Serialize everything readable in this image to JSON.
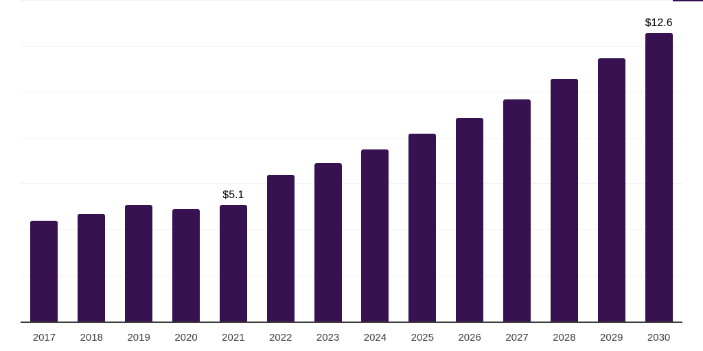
{
  "chart_data": {
    "type": "bar",
    "title": "",
    "xlabel": "",
    "ylabel": "",
    "categories": [
      "2017",
      "2018",
      "2019",
      "2020",
      "2021",
      "2022",
      "2023",
      "2024",
      "2025",
      "2026",
      "2027",
      "2028",
      "2029",
      "2030"
    ],
    "values": [
      4.4,
      4.7,
      5.1,
      4.9,
      5.1,
      6.4,
      6.9,
      7.5,
      8.2,
      8.9,
      9.7,
      10.6,
      11.5,
      12.6
    ],
    "data_labels": [
      {
        "category": "2021",
        "text": "$5.1"
      },
      {
        "category": "2030",
        "text": "$12.6"
      }
    ],
    "ylim": [
      0,
      14
    ],
    "grid_step": 2,
    "grid": true,
    "legend": false,
    "y_tick_labels_shown": false,
    "colors": {
      "bar": "#371150",
      "background": "#ffffff",
      "gridline": "#f1f1f3",
      "axis_line": "#3b3b3b",
      "tick_label": "#3d3d3d",
      "value_label": "#000000"
    }
  }
}
